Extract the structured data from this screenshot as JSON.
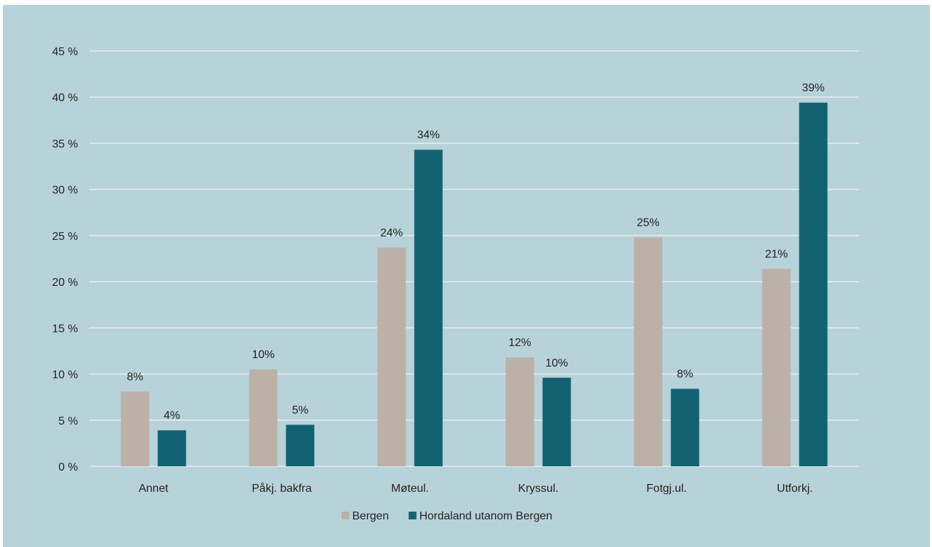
{
  "chart_data": {
    "type": "bar",
    "categories": [
      "Annet",
      "Påkj. bakfra",
      "Møteul.",
      "Kryssul.",
      "Fotgj.ul.",
      "Utforkj."
    ],
    "series": [
      {
        "name": "Bergen",
        "color": "#bbb1a7",
        "values": [
          8.1,
          10.5,
          23.7,
          11.8,
          24.8,
          21.4
        ],
        "labels": [
          "8%",
          "10%",
          "24%",
          "12%",
          "25%",
          "21%"
        ]
      },
      {
        "name": "Hordaland utanom Bergen",
        "color": "#136274",
        "values": [
          3.9,
          4.5,
          34.3,
          9.6,
          8.4,
          39.4
        ],
        "labels": [
          "4%",
          "5%",
          "34%",
          "10%",
          "8%",
          "39%"
        ]
      }
    ],
    "ylim": [
      0,
      45
    ],
    "yticks": [
      0,
      5,
      10,
      15,
      20,
      25,
      30,
      35,
      40,
      45
    ],
    "ytick_labels": [
      "0 %",
      "5 %",
      "10 %",
      "15 %",
      "20 %",
      "25 %",
      "30 %",
      "35 %",
      "40 %",
      "45 %"
    ],
    "grid": true,
    "legend": "bottom-center",
    "background": "#b8d2d9"
  }
}
